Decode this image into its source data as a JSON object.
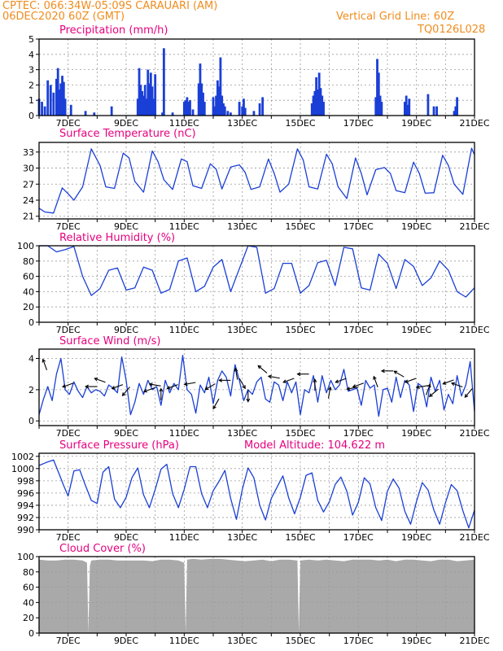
{
  "header": {
    "left_line1": "CPTEC:    066:34W-05:09S   CARAUARI (AM)",
    "left_line2": "06DEC2020 60Z (GMT)",
    "right_line1": "Vertical Grid Line: 60Z",
    "right_line2": "TQ0126L028"
  },
  "colors": {
    "header": "#f08c1e",
    "title": "#e6007e",
    "series": "#1a3fd6",
    "cloud": "#a9a9a9",
    "grid": "#9a9a9a"
  },
  "x_axis": {
    "days": [
      6,
      7,
      8,
      9,
      10,
      11,
      12,
      13,
      14,
      15,
      16,
      17,
      18,
      19,
      20,
      21
    ],
    "tick_labels": [
      "7DEC",
      "9DEC",
      "11DEC",
      "13DEC",
      "15DEC",
      "17DEC",
      "19DEC",
      "21DEC"
    ]
  },
  "chart_data": [
    {
      "type": "bar",
      "title": "Precipitation (mm/h)",
      "ylim": [
        0,
        5
      ],
      "yticks": [
        0,
        1,
        2,
        3,
        4,
        5
      ],
      "x": [
        6.0,
        6.1,
        6.2,
        6.3,
        6.4,
        6.5,
        6.6,
        6.65,
        6.7,
        6.75,
        6.8,
        6.85,
        6.9,
        7.1,
        7.6,
        7.9,
        8.5,
        9.4,
        9.45,
        9.5,
        9.55,
        9.6,
        9.65,
        9.7,
        9.75,
        9.8,
        9.85,
        9.9,
        9.95,
        10.0,
        10.25,
        10.3,
        10.6,
        11.0,
        11.05,
        11.1,
        11.15,
        11.2,
        11.3,
        11.5,
        11.55,
        11.6,
        11.65,
        11.7,
        12.0,
        12.05,
        12.1,
        12.15,
        12.2,
        12.25,
        12.3,
        12.35,
        12.4,
        12.5,
        12.6,
        12.9,
        13.0,
        13.05,
        13.1,
        13.4,
        13.6,
        13.7,
        15.4,
        15.45,
        15.5,
        15.55,
        15.6,
        15.65,
        15.7,
        15.75,
        15.8,
        17.6,
        17.65,
        17.7,
        17.75,
        17.8,
        18.6,
        18.65,
        18.7,
        18.75,
        19.4,
        19.6,
        19.7,
        20.3,
        20.35,
        20.4
      ],
      "values": [
        1.1,
        0.9,
        0.6,
        2.3,
        2.0,
        1.5,
        2.4,
        3.1,
        1.7,
        2.1,
        2.6,
        2.2,
        1.1,
        0.7,
        0.3,
        0.2,
        0.6,
        1.1,
        3.1,
        2.0,
        1.6,
        1.3,
        2.0,
        1.1,
        3.0,
        2.1,
        2.8,
        1.9,
        1.1,
        2.7,
        0.2,
        4.4,
        0.2,
        0.9,
        1.0,
        1.2,
        0.9,
        1.0,
        0.4,
        2.1,
        3.4,
        2.1,
        1.5,
        0.9,
        1.2,
        0.6,
        1.3,
        2.3,
        1.9,
        3.8,
        1.3,
        0.8,
        0.6,
        0.3,
        0.2,
        0.9,
        0.6,
        1.1,
        0.5,
        0.3,
        0.8,
        1.2,
        0.8,
        1.3,
        1.6,
        2.5,
        1.7,
        2.8,
        1.8,
        1.3,
        0.9,
        1.2,
        3.7,
        2.8,
        1.3,
        0.9,
        0.9,
        1.3,
        0.7,
        1.1,
        1.4,
        0.6,
        0.6,
        0.3,
        0.6,
        1.2
      ]
    },
    {
      "type": "line",
      "title": "Surface Temperature (nC)",
      "ylim": [
        20.5,
        34.8
      ],
      "yticks": [
        21,
        24,
        27,
        30,
        33
      ],
      "x": [
        6.0,
        6.2,
        6.5,
        6.8,
        7.0,
        7.2,
        7.5,
        7.8,
        8.1,
        8.3,
        8.6,
        8.9,
        9.1,
        9.3,
        9.6,
        9.9,
        10.1,
        10.3,
        10.6,
        10.9,
        11.1,
        11.3,
        11.6,
        11.9,
        12.1,
        12.3,
        12.6,
        12.9,
        13.1,
        13.3,
        13.6,
        13.9,
        14.1,
        14.3,
        14.6,
        14.9,
        15.1,
        15.3,
        15.6,
        15.9,
        16.1,
        16.3,
        16.6,
        16.9,
        17.1,
        17.3,
        17.6,
        17.9,
        18.1,
        18.3,
        18.6,
        18.9,
        19.1,
        19.3,
        19.6,
        19.9,
        20.1,
        20.3,
        20.6,
        20.9,
        21.0
      ],
      "values": [
        22.5,
        21.8,
        21.6,
        26.3,
        25.2,
        24.0,
        26.5,
        33.6,
        30.5,
        26.5,
        26.2,
        32.8,
        31.9,
        27.5,
        25.5,
        33.2,
        31.2,
        27.8,
        26.0,
        31.7,
        31.2,
        26.7,
        26.2,
        30.8,
        29.8,
        26.1,
        30.2,
        30.6,
        29.2,
        26.0,
        26.5,
        31.7,
        29.0,
        25.5,
        27.0,
        33.6,
        31.5,
        26.5,
        26.1,
        32.6,
        30.8,
        26.5,
        24.3,
        31.9,
        29.0,
        25.0,
        29.7,
        30.1,
        29.0,
        25.8,
        25.4,
        31.1,
        29.0,
        25.3,
        25.4,
        32.4,
        30.5,
        27.0,
        25.1,
        33.7,
        32.5
      ]
    },
    {
      "type": "line",
      "title": "Relative Humidity (%)",
      "ylim": [
        0,
        100
      ],
      "yticks": [
        0,
        20,
        40,
        60,
        80,
        100
      ],
      "x": [
        6.0,
        6.3,
        6.6,
        6.9,
        7.2,
        7.5,
        7.8,
        8.1,
        8.4,
        8.7,
        9.0,
        9.3,
        9.6,
        9.9,
        10.2,
        10.5,
        10.8,
        11.1,
        11.4,
        11.7,
        12.0,
        12.3,
        12.6,
        12.9,
        13.2,
        13.5,
        13.8,
        14.1,
        14.4,
        14.7,
        15.0,
        15.3,
        15.6,
        15.9,
        16.2,
        16.5,
        16.8,
        17.1,
        17.4,
        17.7,
        18.0,
        18.3,
        18.6,
        18.9,
        19.2,
        19.5,
        19.8,
        20.1,
        20.4,
        20.7,
        21.0
      ],
      "values": [
        100,
        100,
        92,
        95,
        99,
        60,
        35,
        44,
        68,
        71,
        42,
        45,
        72,
        68,
        38,
        43,
        80,
        84,
        40,
        47,
        72,
        82,
        40,
        70,
        100,
        98,
        38,
        44,
        77,
        77,
        38,
        48,
        78,
        81,
        48,
        98,
        96,
        45,
        42,
        89,
        77,
        44,
        82,
        73,
        48,
        58,
        80,
        68,
        40,
        33,
        45
      ]
    },
    {
      "type": "line",
      "title": "Surface Wind (m/s)",
      "ylim": [
        -0.3,
        4.6
      ],
      "yticks": [
        0,
        2,
        4
      ],
      "x": [
        6.0,
        6.15,
        6.3,
        6.45,
        6.6,
        6.75,
        6.9,
        7.05,
        7.2,
        7.35,
        7.5,
        7.65,
        7.8,
        7.95,
        8.1,
        8.25,
        8.4,
        8.55,
        8.7,
        8.85,
        9.0,
        9.15,
        9.3,
        9.45,
        9.6,
        9.75,
        9.9,
        10.05,
        10.2,
        10.35,
        10.5,
        10.65,
        10.8,
        10.95,
        11.1,
        11.25,
        11.4,
        11.55,
        11.7,
        11.85,
        12.0,
        12.15,
        12.3,
        12.45,
        12.6,
        12.75,
        12.9,
        13.05,
        13.2,
        13.35,
        13.5,
        13.65,
        13.8,
        13.95,
        14.1,
        14.25,
        14.4,
        14.55,
        14.7,
        14.85,
        15.0,
        15.15,
        15.3,
        15.45,
        15.6,
        15.75,
        15.9,
        16.05,
        16.2,
        16.35,
        16.5,
        16.65,
        16.8,
        16.95,
        17.1,
        17.25,
        17.4,
        17.55,
        17.7,
        17.85,
        18.0,
        18.15,
        18.3,
        18.45,
        18.6,
        18.75,
        18.9,
        19.05,
        19.2,
        19.35,
        19.5,
        19.65,
        19.8,
        19.95,
        20.1,
        20.25,
        20.4,
        20.55,
        20.7,
        20.85,
        21.0
      ],
      "values": [
        0.4,
        1.4,
        2.2,
        1.3,
        3.0,
        4.0,
        2.0,
        1.7,
        2.5,
        1.9,
        1.5,
        2.2,
        1.8,
        2.0,
        1.9,
        1.6,
        2.3,
        2.1,
        1.8,
        4.1,
        2.6,
        0.4,
        1.2,
        2.4,
        1.7,
        2.6,
        2.0,
        2.2,
        1.0,
        2.6,
        1.8,
        2.4,
        2.0,
        4.2,
        2.0,
        1.7,
        0.5,
        2.3,
        1.8,
        2.8,
        1.1,
        2.6,
        3.2,
        2.8,
        1.6,
        3.6,
        2.6,
        1.3,
        2.0,
        1.7,
        2.5,
        2.8,
        1.4,
        1.2,
        2.5,
        2.3,
        1.3,
        2.5,
        1.8,
        2.5,
        0.4,
        2.0,
        1.8,
        2.9,
        1.2,
        2.9,
        1.8,
        2.6,
        2.0,
        2.3,
        3.3,
        1.9,
        2.0,
        2.1,
        1.0,
        2.6,
        2.1,
        2.3,
        0.3,
        2.0,
        2.1,
        1.2,
        2.8,
        1.5,
        2.6,
        2.3,
        0.6,
        2.4,
        2.2,
        0.9,
        2.8,
        1.9,
        2.6,
        0.7,
        1.7,
        1.1,
        2.9,
        1.6,
        2.3,
        3.8,
        0.6
      ]
    },
    {
      "type": "line",
      "title": "Surface Pressure (hPa)",
      "annotation": "Model Altitude: 104.622  m",
      "ylim": [
        990,
        1002.5
      ],
      "yticks": [
        990,
        992,
        994,
        996,
        998,
        1000,
        1002
      ],
      "x": [
        6.0,
        6.25,
        6.5,
        6.7,
        6.85,
        7.0,
        7.2,
        7.4,
        7.6,
        7.8,
        8.0,
        8.2,
        8.4,
        8.6,
        8.8,
        9.0,
        9.2,
        9.4,
        9.6,
        9.8,
        10.0,
        10.2,
        10.4,
        10.6,
        10.8,
        11.0,
        11.2,
        11.4,
        11.6,
        11.8,
        12.0,
        12.2,
        12.4,
        12.6,
        12.8,
        13.0,
        13.2,
        13.4,
        13.6,
        13.8,
        14.0,
        14.2,
        14.4,
        14.6,
        14.8,
        15.0,
        15.2,
        15.4,
        15.6,
        15.8,
        16.0,
        16.2,
        16.4,
        16.6,
        16.8,
        17.0,
        17.2,
        17.4,
        17.6,
        17.8,
        18.0,
        18.2,
        18.4,
        18.6,
        18.8,
        19.0,
        19.2,
        19.4,
        19.6,
        19.8,
        20.0,
        20.2,
        20.4,
        20.6,
        20.8,
        21.0
      ],
      "values": [
        1000.5,
        1001.0,
        1001.4,
        999.0,
        997.2,
        995.5,
        999.6,
        999.8,
        997.2,
        994.8,
        994.3,
        999.4,
        1000.3,
        995.0,
        993.6,
        995.3,
        998.5,
        1000.1,
        995.7,
        993.6,
        996.6,
        999.9,
        1000.7,
        995.9,
        993.6,
        996.6,
        1000.3,
        1000.3,
        995.9,
        993.6,
        996.4,
        997.9,
        999.7,
        995.1,
        991.7,
        996.6,
        1000.1,
        998.5,
        994.0,
        991.6,
        995.1,
        997.0,
        998.8,
        995.2,
        992.6,
        995.3,
        998.9,
        999.3,
        994.8,
        992.9,
        994.6,
        997.4,
        998.6,
        996.3,
        992.4,
        994.5,
        998.5,
        997.5,
        993.6,
        991.5,
        996.3,
        998.3,
        996.8,
        993.0,
        990.9,
        994.6,
        997.7,
        996.5,
        993.2,
        990.9,
        994.4,
        997.4,
        996.4,
        993.1,
        990.3,
        993.2
      ]
    },
    {
      "type": "area",
      "title": "Cloud Cover (%)",
      "ylim": [
        0,
        100
      ],
      "yticks": [
        0,
        20,
        40,
        60,
        80,
        100
      ],
      "x": [
        6.0,
        6.3,
        6.6,
        6.9,
        7.2,
        7.5,
        7.65,
        7.7,
        7.75,
        7.8,
        8.1,
        8.4,
        8.7,
        9.0,
        9.3,
        9.6,
        9.9,
        10.2,
        10.5,
        10.8,
        11.0,
        11.05,
        11.1,
        11.3,
        11.6,
        11.9,
        12.2,
        12.5,
        12.8,
        13.1,
        13.4,
        13.7,
        14.0,
        14.3,
        14.6,
        14.9,
        14.95,
        15.0,
        15.3,
        15.6,
        15.9,
        16.2,
        16.5,
        16.8,
        17.1,
        17.4,
        17.7,
        18.0,
        18.3,
        18.6,
        18.9,
        19.2,
        19.5,
        19.8,
        20.1,
        20.4,
        20.7,
        21.0
      ],
      "values": [
        96,
        95,
        95,
        96,
        96,
        95,
        92,
        1,
        88,
        95,
        96,
        96,
        95,
        95,
        95,
        95,
        94,
        96,
        96,
        95,
        92,
        0,
        96,
        97,
        96,
        97,
        97,
        96,
        95,
        94,
        95,
        96,
        94,
        96,
        96,
        95,
        1,
        95,
        96,
        95,
        96,
        95,
        94,
        96,
        96,
        96,
        95,
        96,
        94,
        96,
        96,
        95,
        94,
        96,
        96,
        94,
        95,
        96
      ]
    }
  ],
  "wind_arrows": [
    {
      "day": 6.2,
      "value": 3.6,
      "dir_deg": 110
    },
    {
      "day": 7.0,
      "value": 2.3,
      "dir_deg": 200
    },
    {
      "day": 7.8,
      "value": 2.2,
      "dir_deg": 180
    },
    {
      "day": 8.1,
      "value": 2.6,
      "dir_deg": 160
    },
    {
      "day": 8.7,
      "value": 2.2,
      "dir_deg": 200
    },
    {
      "day": 9.0,
      "value": 1.9,
      "dir_deg": 230
    },
    {
      "day": 9.8,
      "value": 2.0,
      "dir_deg": 200
    },
    {
      "day": 10.0,
      "value": 2.3,
      "dir_deg": 170
    },
    {
      "day": 10.2,
      "value": 1.7,
      "dir_deg": 90
    },
    {
      "day": 10.6,
      "value": 2.2,
      "dir_deg": 200
    },
    {
      "day": 11.2,
      "value": 2.4,
      "dir_deg": 190
    },
    {
      "day": 11.9,
      "value": 2.2,
      "dir_deg": 210
    },
    {
      "day": 12.1,
      "value": 1.1,
      "dir_deg": 240
    },
    {
      "day": 12.4,
      "value": 2.6,
      "dir_deg": 180
    },
    {
      "day": 12.8,
      "value": 3.0,
      "dir_deg": 100
    },
    {
      "day": 13.0,
      "value": 2.4,
      "dir_deg": 300
    },
    {
      "day": 13.2,
      "value": 1.6,
      "dir_deg": 270
    },
    {
      "day": 13.7,
      "value": 3.3,
      "dir_deg": 140
    },
    {
      "day": 14.1,
      "value": 2.8,
      "dir_deg": 170
    },
    {
      "day": 14.6,
      "value": 2.6,
      "dir_deg": 200
    },
    {
      "day": 15.1,
      "value": 3.0,
      "dir_deg": 180
    },
    {
      "day": 15.5,
      "value": 2.3,
      "dir_deg": 90
    },
    {
      "day": 16.0,
      "value": 1.8,
      "dir_deg": 80
    },
    {
      "day": 16.4,
      "value": 2.6,
      "dir_deg": 200
    },
    {
      "day": 16.8,
      "value": 2.1,
      "dir_deg": 190
    },
    {
      "day": 17.0,
      "value": 2.3,
      "dir_deg": 200
    },
    {
      "day": 17.6,
      "value": 2.5,
      "dir_deg": 110
    },
    {
      "day": 18.0,
      "value": 3.2,
      "dir_deg": 180
    },
    {
      "day": 18.4,
      "value": 3.0,
      "dir_deg": 150
    },
    {
      "day": 18.8,
      "value": 2.6,
      "dir_deg": 200
    },
    {
      "day": 19.2,
      "value": 2.2,
      "dir_deg": 190
    },
    {
      "day": 19.4,
      "value": 2.0,
      "dir_deg": 70
    },
    {
      "day": 19.6,
      "value": 1.8,
      "dir_deg": 220
    },
    {
      "day": 20.1,
      "value": 2.5,
      "dir_deg": 200
    },
    {
      "day": 20.4,
      "value": 2.3,
      "dir_deg": 160
    },
    {
      "day": 20.8,
      "value": 1.8,
      "dir_deg": 230
    }
  ]
}
